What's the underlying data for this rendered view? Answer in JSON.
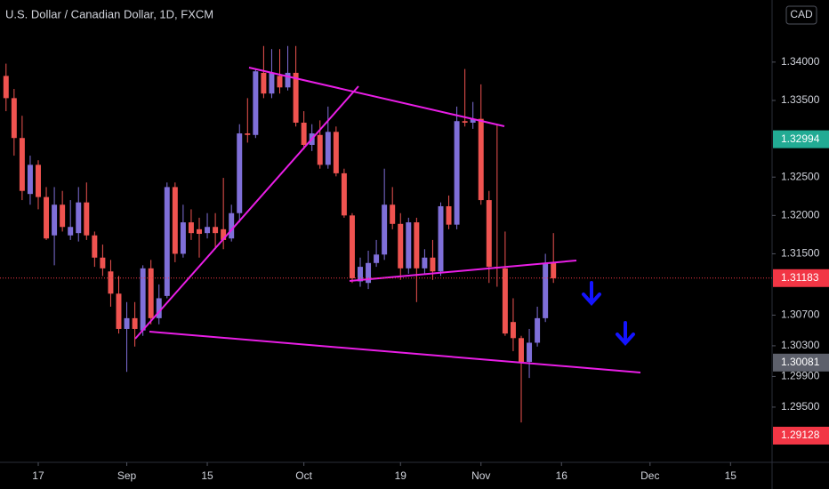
{
  "chart_data": {
    "type": "candlestick",
    "title": "U.S. Dollar / Canadian Dollar, 1D, FXCM",
    "currency": "CAD",
    "up_color": "#7f6fd8",
    "down_color": "#ef5350",
    "grid": false,
    "xlim": [
      -0.75,
      95.16
    ],
    "ylim": [
      1.2878,
      1.3481
    ],
    "xticks": [
      {
        "value": 4,
        "label": "17"
      },
      {
        "value": 15,
        "label": "Sep"
      },
      {
        "value": 25,
        "label": "15"
      },
      {
        "value": 37,
        "label": "Oct"
      },
      {
        "value": 49,
        "label": "19"
      },
      {
        "value": 59,
        "label": "Nov"
      },
      {
        "value": 69,
        "label": "16"
      },
      {
        "value": 80,
        "label": "Dec"
      },
      {
        "value": 90,
        "label": "15"
      }
    ],
    "yticks": [
      {
        "value": 1.34,
        "label": "1.34000"
      },
      {
        "value": 1.335,
        "label": "1.33500"
      },
      {
        "value": 1.325,
        "label": "1.32500"
      },
      {
        "value": 1.32,
        "label": "1.32000"
      },
      {
        "value": 1.315,
        "label": "1.31500"
      },
      {
        "value": 1.307,
        "label": "1.30700"
      },
      {
        "value": 1.303,
        "label": "1.30300"
      },
      {
        "value": 1.299,
        "label": "1.29900"
      },
      {
        "value": 1.295,
        "label": "1.29500"
      }
    ],
    "price_marks": [
      {
        "value": 1.32994,
        "color": "#22ab94",
        "dotted": false
      },
      {
        "value": 1.31183,
        "color": "#f23645",
        "dotted": true
      },
      {
        "value": 1.30081,
        "color": "#5d606b",
        "dotted": false
      },
      {
        "value": 1.29128,
        "color": "#f23645",
        "dotted": false
      }
    ],
    "open": [
      1.3382,
      1.3353,
      1.3301,
      1.3228,
      1.3266,
      1.3224,
      1.3174,
      1.3214,
      1.3174,
      1.3177,
      1.3217,
      1.3174,
      1.3145,
      1.3127,
      1.3098,
      1.3052,
      1.3066,
      1.305,
      1.3131,
      1.3066,
      1.3095,
      1.3237,
      1.315,
      1.3191,
      1.3182,
      1.3177,
      1.3185,
      1.3182,
      1.317,
      1.3203,
      1.3307,
      1.3305,
      1.3386,
      1.3359,
      1.3382,
      1.3367,
      1.3386,
      1.3321,
      1.3292,
      1.3305,
      1.3266,
      1.3309,
      1.3255,
      1.32,
      1.3114,
      1.3112,
      1.3138,
      1.3149,
      1.3214,
      1.3189,
      1.3131,
      1.3191,
      1.3131,
      1.3145,
      1.3127,
      1.3212,
      1.3188,
      1.3323,
      1.3321,
      1.3326,
      1.322,
      1.3133,
      1.3131,
      1.3061,
      1.304,
      1.3009,
      1.3034,
      1.3066,
      1.3138
    ],
    "high": [
      1.3398,
      1.3365,
      1.333,
      1.3278,
      1.3272,
      1.3237,
      1.3237,
      1.3232,
      1.322,
      1.3237,
      1.3243,
      1.3179,
      1.3162,
      1.3142,
      1.3121,
      1.3087,
      1.3087,
      1.3135,
      1.3142,
      1.311,
      1.3243,
      1.3243,
      1.3214,
      1.3208,
      1.3197,
      1.3203,
      1.3203,
      1.3249,
      1.3214,
      1.3319,
      1.3353,
      1.3391,
      1.3421,
      1.3417,
      1.3417,
      1.3421,
      1.3421,
      1.3336,
      1.3319,
      1.3324,
      1.3342,
      1.3316,
      1.3261,
      1.3203,
      1.3145,
      1.3154,
      1.3168,
      1.3261,
      1.3237,
      1.3203,
      1.3197,
      1.3197,
      1.3156,
      1.3168,
      1.3217,
      1.3226,
      1.3342,
      1.3391,
      1.3348,
      1.3371,
      1.3232,
      1.3319,
      1.3179,
      1.3092,
      1.3043,
      1.3052,
      1.3081,
      1.315,
      1.3177
    ],
    "low": [
      1.3336,
      1.3278,
      1.322,
      1.3214,
      1.3208,
      1.3168,
      1.3135,
      1.3179,
      1.3168,
      1.3166,
      1.3168,
      1.3133,
      1.3121,
      1.3081,
      1.3046,
      1.2996,
      1.3029,
      1.3043,
      1.3058,
      1.3058,
      1.3092,
      1.3139,
      1.3145,
      1.3168,
      1.3145,
      1.317,
      1.3156,
      1.3156,
      1.3166,
      1.3191,
      1.3295,
      1.3301,
      1.3353,
      1.3353,
      1.3359,
      1.3363,
      1.3316,
      1.3286,
      1.3284,
      1.3261,
      1.3261,
      1.3251,
      1.3197,
      1.3112,
      1.3107,
      1.3104,
      1.3133,
      1.3142,
      1.3182,
      1.3116,
      1.3124,
      1.3087,
      1.3124,
      1.3116,
      1.3121,
      1.3182,
      1.3182,
      1.3316,
      1.3313,
      1.3214,
      1.3112,
      1.3107,
      1.3043,
      1.3023,
      1.293,
      1.2988,
      1.3029,
      1.3061,
      1.3112
    ],
    "close": [
      1.3353,
      1.3301,
      1.3232,
      1.3266,
      1.3224,
      1.317,
      1.3214,
      1.3185,
      1.3185,
      1.3217,
      1.3174,
      1.3145,
      1.3131,
      1.3098,
      1.3052,
      1.3066,
      1.3052,
      1.3131,
      1.3066,
      1.3092,
      1.3237,
      1.315,
      1.3191,
      1.3177,
      1.3176,
      1.3185,
      1.3177,
      1.3168,
      1.3203,
      1.3307,
      1.3305,
      1.3388,
      1.3359,
      1.3386,
      1.3367,
      1.3386,
      1.3321,
      1.3292,
      1.3307,
      1.3266,
      1.3309,
      1.3255,
      1.32,
      1.3118,
      1.3133,
      1.3138,
      1.3149,
      1.3214,
      1.3189,
      1.3131,
      1.3191,
      1.3131,
      1.3145,
      1.3127,
      1.3212,
      1.3188,
      1.3323,
      1.3321,
      1.3326,
      1.322,
      1.3133,
      1.3131,
      1.3046,
      1.304,
      1.3009,
      1.3034,
      1.3066,
      1.3138,
      1.3118
    ]
  }
}
